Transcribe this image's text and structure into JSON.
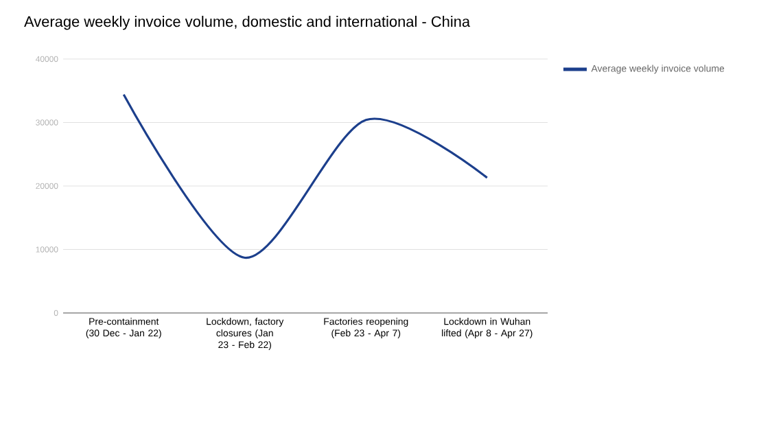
{
  "chart_data": {
    "type": "line",
    "title": "Average weekly invoice volume, domestic and international - China",
    "categories": [
      "Pre-containment (30 Dec - Jan 22)",
      "Lockdown, factory closures (Jan 23 - Feb 22)",
      "Factories reopening (Feb 23 - Apr 7)",
      "Lockdown in Wuhan lifted (Apr 8 - Apr 27)"
    ],
    "series": [
      {
        "name": "Average weekly invoice volume",
        "color": "#1c3f8c",
        "values": [
          34400,
          8700,
          30400,
          21300
        ]
      }
    ],
    "ylim": [
      0,
      40000
    ],
    "yticks": [
      0,
      10000,
      20000,
      30000,
      40000
    ],
    "grid": "y",
    "legend": "top right"
  }
}
